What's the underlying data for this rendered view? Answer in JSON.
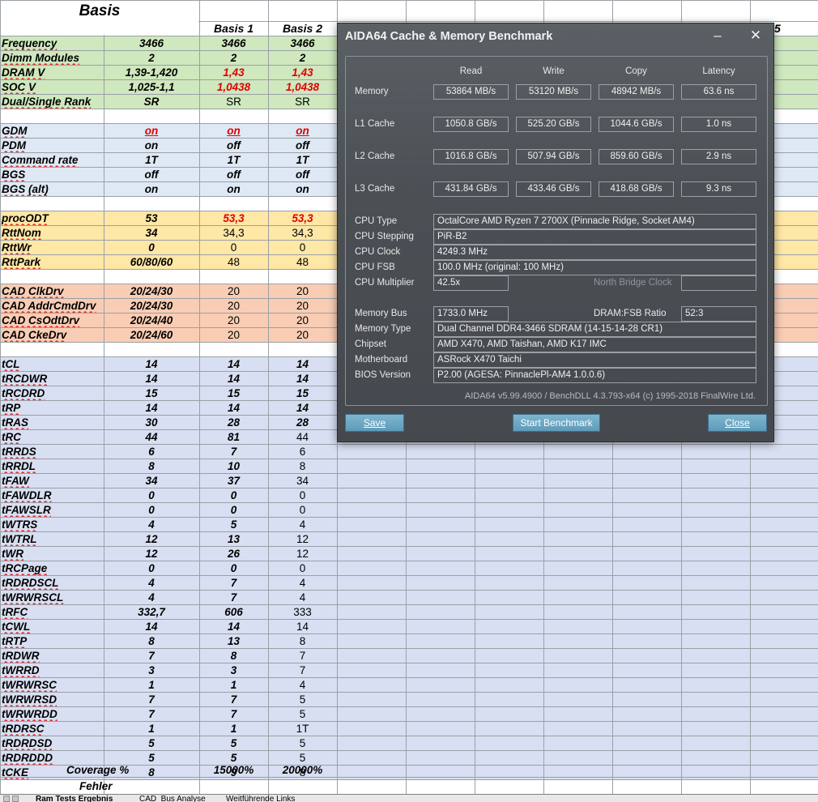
{
  "sheet": {
    "title": "Basis",
    "col_headers": [
      "Basis 1",
      "Basis 2",
      "5"
    ],
    "rows": [
      {
        "label": "Frequency",
        "v1": "3466",
        "v2": "3466",
        "v3": "3466",
        "band": "green"
      },
      {
        "label": "Dimm Modules",
        "v1": "2",
        "v2": "2",
        "v3": "2",
        "band": "green"
      },
      {
        "label": "DRAM V",
        "v1": "1,39-1,420",
        "v2": "1,43",
        "v3": "1,43",
        "band": "green"
      },
      {
        "label": "SOC V",
        "v1": "1,025-1,1",
        "v2": "1,0438",
        "v3": "1,0438",
        "band": "green"
      },
      {
        "label": "Dual/Single Rank",
        "v1": "SR",
        "v2": "SR",
        "v3": "SR",
        "band": "green"
      },
      {
        "label": "",
        "v1": "",
        "v2": "",
        "v3": "",
        "band": "white"
      },
      {
        "label": "GDM",
        "v1": "on",
        "v2": "on",
        "v3": "on",
        "band": "lightblue"
      },
      {
        "label": "PDM",
        "v1": "on",
        "v2": "off",
        "v3": "off",
        "band": "lightblue"
      },
      {
        "label": "Command rate",
        "v1": "1T",
        "v2": "1T",
        "v3": "1T",
        "band": "lightblue"
      },
      {
        "label": "BGS",
        "v1": "off",
        "v2": "off",
        "v3": "off",
        "band": "lightblue"
      },
      {
        "label": "BGS (alt)",
        "v1": "on",
        "v2": "on",
        "v3": "on",
        "band": "lightblue"
      },
      {
        "label": "",
        "v1": "",
        "v2": "",
        "v3": "",
        "band": "white"
      },
      {
        "label": "procODT",
        "v1": "53",
        "v2": "53,3",
        "v3": "53,3",
        "band": "yellow"
      },
      {
        "label": "RttNom",
        "v1": "34",
        "v2": "34,3",
        "v3": "34,3",
        "band": "yellow"
      },
      {
        "label": "RttWr",
        "v1": "0",
        "v2": "0",
        "v3": "0",
        "band": "yellow"
      },
      {
        "label": "RttPark",
        "v1": "60/80/60",
        "v2": "48",
        "v3": "48",
        "band": "yellow"
      },
      {
        "label": "",
        "v1": "",
        "v2": "",
        "v3": "",
        "band": "white"
      },
      {
        "label": "CAD ClkDrv",
        "v1": "20/24/30",
        "v2": "20",
        "v3": "20",
        "band": "orange"
      },
      {
        "label": "CAD AddrCmdDrv",
        "v1": "20/24/30",
        "v2": "20",
        "v3": "20",
        "band": "orange"
      },
      {
        "label": "CAD CsOdtDrv",
        "v1": "20/24/40",
        "v2": "20",
        "v3": "20",
        "band": "orange"
      },
      {
        "label": "CAD CkeDrv",
        "v1": "20/24/60",
        "v2": "20",
        "v3": "20",
        "band": "orange"
      },
      {
        "label": "",
        "v1": "",
        "v2": "",
        "v3": "",
        "band": "white"
      },
      {
        "label": "tCL",
        "v1": "14",
        "v2": "14",
        "v3": "14",
        "band": "lavender"
      },
      {
        "label": "tRCDWR",
        "v1": "14",
        "v2": "14",
        "v3": "14",
        "band": "lavender"
      },
      {
        "label": "tRCDRD",
        "v1": "15",
        "v2": "15",
        "v3": "15",
        "band": "lavender"
      },
      {
        "label": "tRP",
        "v1": "14",
        "v2": "14",
        "v3": "14",
        "band": "lavender"
      },
      {
        "label": "tRAS",
        "v1": "30",
        "v2": "28",
        "v3": "28",
        "band": "lavender"
      },
      {
        "label": "tRC",
        "v1": "44",
        "v2": "81",
        "v3": "44",
        "band": "lavender"
      },
      {
        "label": "tRRDS",
        "v1": "6",
        "v2": "7",
        "v3": "6",
        "band": "lavender"
      },
      {
        "label": "tRRDL",
        "v1": "8",
        "v2": "10",
        "v3": "8",
        "band": "lavender"
      },
      {
        "label": "tFAW",
        "v1": "34",
        "v2": "37",
        "v3": "34",
        "band": "lavender"
      },
      {
        "label": "tFAWDLR",
        "v1": "0",
        "v2": "0",
        "v3": "0",
        "band": "lavender"
      },
      {
        "label": "tFAWSLR",
        "v1": "0",
        "v2": "0",
        "v3": "0",
        "band": "lavender"
      },
      {
        "label": "tWTRS",
        "v1": "4",
        "v2": "5",
        "v3": "4",
        "band": "lavender"
      },
      {
        "label": "tWTRL",
        "v1": "12",
        "v2": "13",
        "v3": "12",
        "band": "lavender"
      },
      {
        "label": "tWR",
        "v1": "12",
        "v2": "26",
        "v3": "12",
        "band": "lavender"
      },
      {
        "label": "tRCPage",
        "v1": "0",
        "v2": "0",
        "v3": "0",
        "band": "lavender"
      },
      {
        "label": "tRDRDSCL",
        "v1": "4",
        "v2": "7",
        "v3": "4",
        "band": "lavender"
      },
      {
        "label": "tWRWRSCL",
        "v1": "4",
        "v2": "7",
        "v3": "4",
        "band": "lavender"
      },
      {
        "label": "tRFC",
        "v1": "332,7",
        "v2": "606",
        "v3": "333",
        "band": "lavender"
      },
      {
        "label": "tCWL",
        "v1": "14",
        "v2": "14",
        "v3": "14",
        "band": "lavender"
      },
      {
        "label": "tRTP",
        "v1": "8",
        "v2": "13",
        "v3": "8",
        "band": "lavender"
      },
      {
        "label": "tRDWR",
        "v1": "7",
        "v2": "8",
        "v3": "7",
        "band": "lavender"
      },
      {
        "label": "tWRRD",
        "v1": "3",
        "v2": "3",
        "v3": "7",
        "band": "lavender"
      },
      {
        "label": "tWRWRSC",
        "v1": "1",
        "v2": "1",
        "v3": "4",
        "band": "lavender"
      },
      {
        "label": "tWRWRSD",
        "v1": "7",
        "v2": "7",
        "v3": "5",
        "band": "lavender"
      },
      {
        "label": "tWRWRDD",
        "v1": "7",
        "v2": "7",
        "v3": "5",
        "band": "lavender"
      },
      {
        "label": "tRDRSC",
        "v1": "1",
        "v2": "1",
        "v3": "1T",
        "band": "lavender"
      },
      {
        "label": "tRDRDSD",
        "v1": "5",
        "v2": "5",
        "v3": "5",
        "band": "lavender"
      },
      {
        "label": "tRDRDDD",
        "v1": "5",
        "v2": "5",
        "v3": "5",
        "band": "lavender"
      },
      {
        "label": "tCKE",
        "v1": "8",
        "v2": "9",
        "v3": "8",
        "band": "lavender"
      },
      {
        "label": "",
        "v1": "",
        "v2": "",
        "v3": "",
        "band": "white"
      }
    ],
    "coverage_label": "Coverage %",
    "coverage_v2": "15000%",
    "coverage_v3": "20000%",
    "fehler_label": "Fehler",
    "tabs": [
      "Ram Tests Ergebnis",
      "CAD_Bus Analyse",
      "Weitführende Links"
    ],
    "colors": {
      "green": "#cfe8be",
      "lightblue": "#dfe9f5",
      "yellow": "#ffe7a6",
      "orange": "#f9cdb4",
      "lavender": "#d8dff2",
      "red_text": "#e00000"
    }
  },
  "dialog": {
    "title": "AIDA64 Cache & Memory Benchmark",
    "minimize_icon": "minimize-icon",
    "close_icon": "close-icon",
    "minimize_glyph": "–",
    "close_glyph": "✕",
    "columns": [
      "Read",
      "Write",
      "Copy",
      "Latency"
    ],
    "bench": [
      {
        "label": "Memory",
        "read": "53864 MB/s",
        "write": "53120 MB/s",
        "copy": "48942 MB/s",
        "latency": "63.6 ns"
      },
      {
        "label": "L1 Cache",
        "read": "1050.8 GB/s",
        "write": "525.20 GB/s",
        "copy": "1044.6 GB/s",
        "latency": "1.0 ns"
      },
      {
        "label": "L2 Cache",
        "read": "1016.8 GB/s",
        "write": "507.94 GB/s",
        "copy": "859.60 GB/s",
        "latency": "2.9 ns"
      },
      {
        "label": "L3 Cache",
        "read": "431.84 GB/s",
        "write": "433.46 GB/s",
        "copy": "418.68 GB/s",
        "latency": "9.3 ns"
      }
    ],
    "cpu_type_label": "CPU Type",
    "cpu_type": "OctalCore AMD Ryzen 7 2700X  (Pinnacle Ridge, Socket AM4)",
    "cpu_stepping_label": "CPU Stepping",
    "cpu_stepping": "PiR-B2",
    "cpu_clock_label": "CPU Clock",
    "cpu_clock": "4249.3 MHz",
    "cpu_fsb_label": "CPU FSB",
    "cpu_fsb": "100.0 MHz  (original: 100 MHz)",
    "cpu_multiplier_label": "CPU Multiplier",
    "cpu_multiplier": "42.5x",
    "nb_clock_label": "North Bridge Clock",
    "nb_clock": "",
    "memory_bus_label": "Memory Bus",
    "memory_bus": "1733.0 MHz",
    "dram_fsb_label": "DRAM:FSB Ratio",
    "dram_fsb": "52:3",
    "memory_type_label": "Memory Type",
    "memory_type": "Dual Channel DDR4-3466 SDRAM  (14-15-14-28 CR1)",
    "chipset_label": "Chipset",
    "chipset": "AMD X470, AMD Taishan, AMD K17 IMC",
    "motherboard_label": "Motherboard",
    "motherboard": "ASRock X470 Taichi",
    "bios_label": "BIOS Version",
    "bios": "P2.00  (AGESA: PinnaclePl-AM4 1.0.0.6)",
    "footer": "AIDA64 v5.99.4900 / BenchDLL 4.3.793-x64  (c) 1995-2018 FinalWire Ltd.",
    "save_label": "Save",
    "start_label": "Start Benchmark",
    "close_label": "Close"
  }
}
